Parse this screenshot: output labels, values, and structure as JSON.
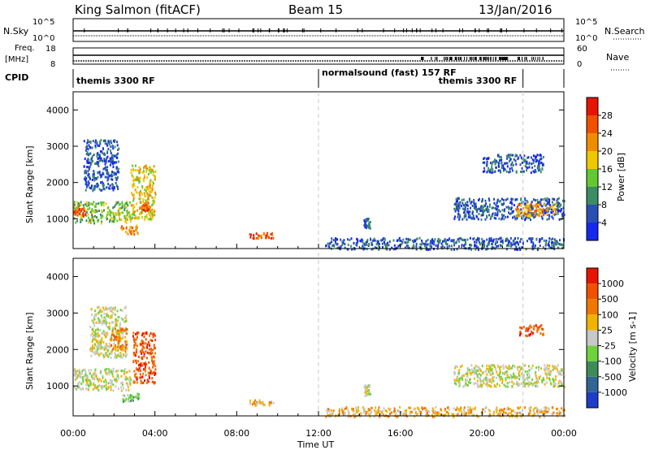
{
  "header": {
    "station": "King Salmon (fitACF)",
    "beam": "Beam 15",
    "date": "13/Jan/2016"
  },
  "top_panels": {
    "nsky_label": "N.Sky",
    "nsky_ticks": [
      "10^5",
      "10^0"
    ],
    "nsearch_label": "N.Search",
    "nsearch_ticks": [
      "10^5",
      "10^0"
    ],
    "freq_label": "Freq.",
    "freq_unit": "[MHz]",
    "freq_ticks": [
      "18",
      "8"
    ],
    "nave_label": "Nave",
    "nave_ticks": [
      "60",
      "0"
    ],
    "cpid_label": "CPID",
    "cpid_segments": [
      {
        "label": "themis 3300 RF",
        "start_hour": 0,
        "end_hour": 12
      },
      {
        "label": "normalsound (fast) 157 RF",
        "start_hour": 12,
        "end_hour": 22
      },
      {
        "label": "themis 3300 RF",
        "start_hour": 22,
        "end_hour": 24
      }
    ]
  },
  "x_axis": {
    "ticks": [
      "00:00",
      "04:00",
      "08:00",
      "12:00",
      "16:00",
      "20:00",
      "00:00"
    ],
    "tick_hours": [
      0,
      4,
      8,
      12,
      16,
      20,
      24
    ],
    "label": "Time UT"
  },
  "chart_data": [
    {
      "type": "heatmap",
      "name": "power",
      "ylabel": "Slant Range [km]",
      "xlim": [
        0,
        24
      ],
      "ylim": [
        180,
        4500
      ],
      "yticks": [
        "1000",
        "2000",
        "3000",
        "4000"
      ],
      "ytick_values": [
        1000,
        2000,
        3000,
        4000
      ],
      "colorbar_label": "Power [dB]",
      "colorbar_ticks": [
        "4",
        "8",
        "12",
        "16",
        "20",
        "24",
        "28"
      ],
      "colorbar_colors": [
        "#1428f0",
        "#2850b4",
        "#3c8c64",
        "#64c832",
        "#f0c800",
        "#f08c00",
        "#f05000",
        "#e61400"
      ],
      "regions": [
        {
          "t0": 0.0,
          "t1": 2.8,
          "r0": 900,
          "r1": 1500,
          "level": 3
        },
        {
          "t0": 0.0,
          "t1": 0.6,
          "r0": 1100,
          "r1": 1350,
          "level": 6
        },
        {
          "t0": 0.5,
          "t1": 2.2,
          "r0": 1800,
          "r1": 3200,
          "level": 1
        },
        {
          "t0": 2.3,
          "t1": 3.2,
          "r0": 600,
          "r1": 850,
          "level": 5
        },
        {
          "t0": 2.8,
          "t1": 4.0,
          "r0": 1000,
          "r1": 2500,
          "level": 4
        },
        {
          "t0": 3.3,
          "t1": 3.7,
          "r0": 1250,
          "r1": 1500,
          "level": 6
        },
        {
          "t0": 8.6,
          "t1": 9.8,
          "r0": 480,
          "r1": 640,
          "level": 6
        },
        {
          "t0": 12.3,
          "t1": 24.0,
          "r0": 180,
          "r1": 500,
          "level": 1
        },
        {
          "t0": 14.2,
          "t1": 14.5,
          "r0": 750,
          "r1": 1050,
          "level": 1
        },
        {
          "t0": 18.6,
          "t1": 24.0,
          "r0": 1000,
          "r1": 1600,
          "level": 1
        },
        {
          "t0": 21.6,
          "t1": 23.6,
          "r0": 1100,
          "r1": 1450,
          "level": 5
        },
        {
          "t0": 20.0,
          "t1": 23.0,
          "r0": 2300,
          "r1": 2800,
          "level": 1
        }
      ]
    },
    {
      "type": "heatmap",
      "name": "velocity",
      "ylabel": "Slant Range [km]",
      "xlim": [
        0,
        24
      ],
      "ylim": [
        180,
        4500
      ],
      "yticks": [
        "1000",
        "2000",
        "3000",
        "4000"
      ],
      "ytick_values": [
        1000,
        2000,
        3000,
        4000
      ],
      "colorbar_label": "Velocity [m s-1]",
      "colorbar_ticks": [
        "1000",
        "500",
        "100",
        "25",
        "-25",
        "-100",
        "-500",
        "-1000"
      ],
      "colorbar_colors": [
        "#1e3cc8",
        "#326496",
        "#3c8c5a",
        "#6ed23c",
        "#c8c8c8",
        "#f0b400",
        "#f07800",
        "#f05000",
        "#e61400"
      ],
      "regions": [
        {
          "t0": 0.0,
          "t1": 2.8,
          "r0": 900,
          "r1": 1500,
          "level": 4
        },
        {
          "t0": 0.8,
          "t1": 2.6,
          "r0": 1800,
          "r1": 3200,
          "level": 4
        },
        {
          "t0": 1.8,
          "t1": 2.6,
          "r0": 2000,
          "r1": 2600,
          "level": 6
        },
        {
          "t0": 2.4,
          "t1": 3.2,
          "r0": 600,
          "r1": 850,
          "level": 3
        },
        {
          "t0": 2.9,
          "t1": 4.0,
          "r0": 1100,
          "r1": 2500,
          "level": 7
        },
        {
          "t0": 8.6,
          "t1": 9.8,
          "r0": 480,
          "r1": 640,
          "level": 5
        },
        {
          "t0": 12.3,
          "t1": 24.0,
          "r0": 180,
          "r1": 450,
          "level": 5
        },
        {
          "t0": 14.2,
          "t1": 14.5,
          "r0": 750,
          "r1": 1050,
          "level": 4
        },
        {
          "t0": 18.6,
          "t1": 24.0,
          "r0": 1000,
          "r1": 1600,
          "level": 4
        },
        {
          "t0": 21.8,
          "t1": 23.0,
          "r0": 2400,
          "r1": 2700,
          "level": 7
        }
      ]
    }
  ]
}
